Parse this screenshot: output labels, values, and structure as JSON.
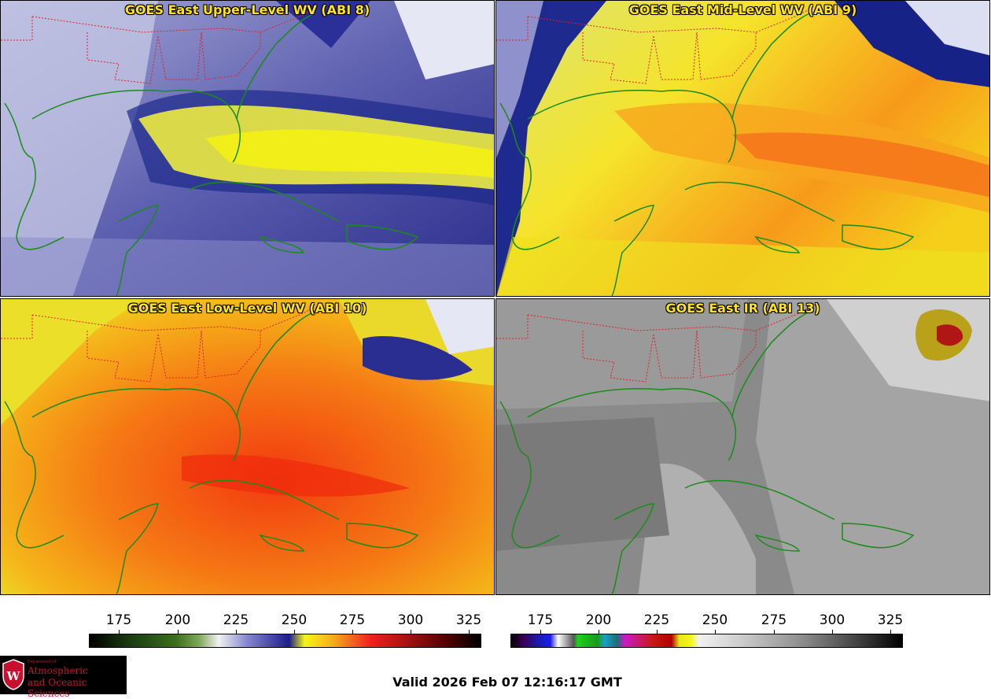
{
  "panels": [
    {
      "title": "GOES East Upper-Level WV (ABI 8)",
      "palette": "wv-upper"
    },
    {
      "title": "GOES East Mid-Level WV (ABI 9)",
      "palette": "wv-mid"
    },
    {
      "title": "GOES East Low-Level WV (ABI 10)",
      "palette": "wv-low"
    },
    {
      "title": "GOES East IR (ABI 13)",
      "palette": "ir-gray"
    }
  ],
  "colorbars": {
    "wv": {
      "ticks": [
        "175",
        "200",
        "225",
        "250",
        "275",
        "300",
        "325"
      ]
    },
    "ir": {
      "ticks": [
        "175",
        "200",
        "225",
        "250",
        "275",
        "300",
        "325"
      ]
    }
  },
  "logo": {
    "line1": "Department of",
    "line2": "Atmospheric",
    "line3": "and Oceanic Sciences"
  },
  "footer": {
    "valid": "Valid 2026 Feb 07 12:16:17 GMT"
  },
  "colors": {
    "title": "#ffe21a",
    "coast": "#1a8c1a",
    "border": "#e02020"
  }
}
